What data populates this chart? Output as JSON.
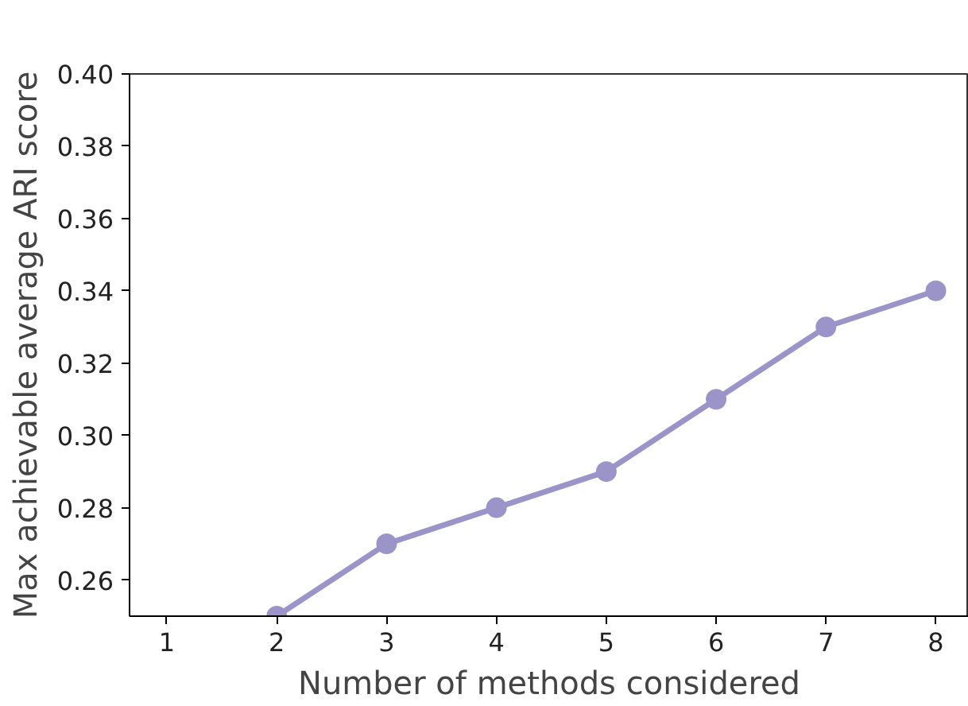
{
  "chart_data": {
    "type": "line",
    "xlabel": "Number of methods considered",
    "ylabel": "Max achievable average ARI score",
    "x": [
      2,
      3,
      4,
      5,
      6,
      7,
      8
    ],
    "series": [
      {
        "color": "#9b94c9",
        "values": [
          0.25,
          0.27,
          0.28,
          0.29,
          0.31,
          0.33,
          0.34
        ]
      }
    ],
    "xlim": [
      0.66,
      8.3
    ],
    "ylim": [
      0.25,
      0.4
    ],
    "xticks": [
      1,
      2,
      3,
      4,
      5,
      6,
      7,
      8
    ],
    "yticks": [
      {
        "value": 0.26,
        "label": "0.26"
      },
      {
        "value": 0.28,
        "label": "0.28"
      },
      {
        "value": 0.3,
        "label": "0.30"
      },
      {
        "value": 0.32,
        "label": "0.32"
      },
      {
        "value": 0.34,
        "label": "0.34"
      },
      {
        "value": 0.36,
        "label": "0.36"
      },
      {
        "value": 0.38,
        "label": "0.38"
      },
      {
        "value": 0.4,
        "label": "0.40"
      }
    ],
    "grid": false,
    "marker": "circle",
    "line_style": "solid"
  }
}
